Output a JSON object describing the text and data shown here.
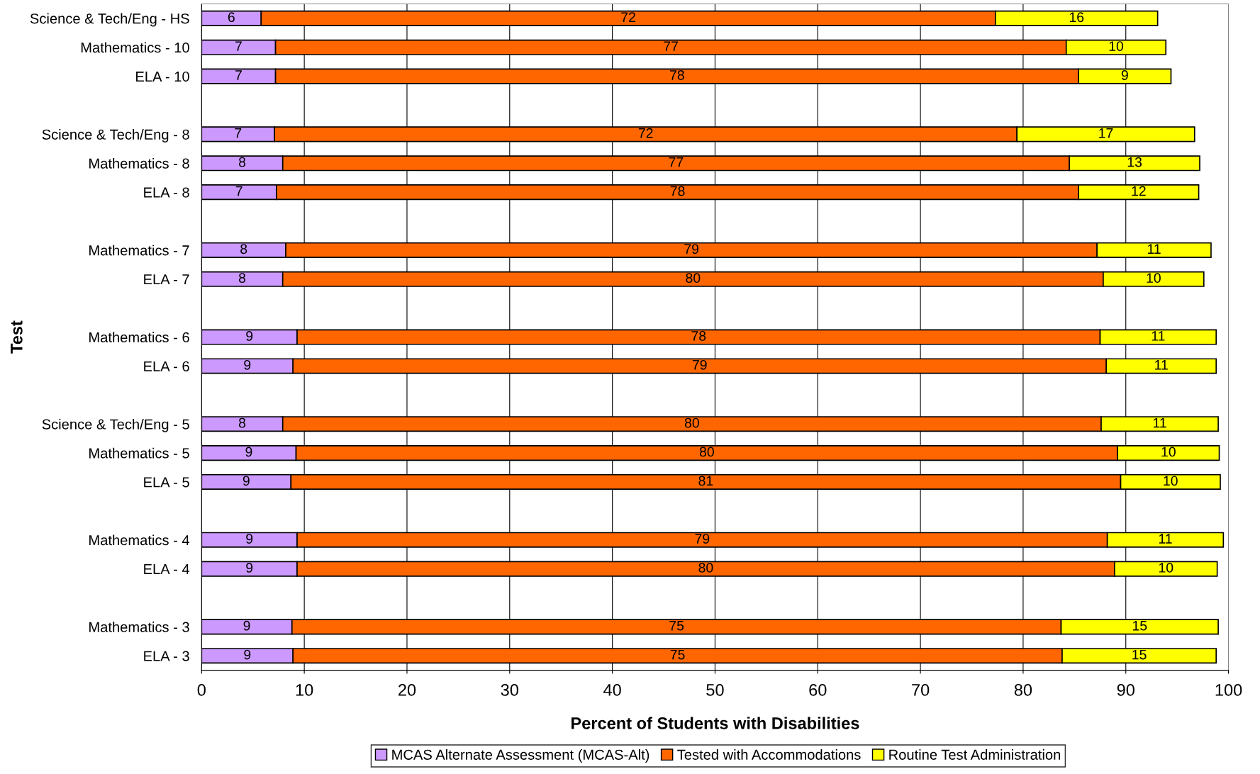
{
  "chart_data": {
    "type": "bar",
    "orientation": "horizontal",
    "stacked": true,
    "xlabel": "Percent of Students with Disabilities",
    "ylabel": "Test",
    "categories": [
      "Science & Tech/Eng - HS",
      "Mathematics - 10",
      "ELA - 10",
      null,
      "Science & Tech/Eng - 8",
      "Mathematics - 8",
      "ELA - 8",
      null,
      "Mathematics - 7",
      "ELA - 7",
      null,
      "Mathematics - 6",
      "ELA - 6",
      null,
      "Science & Tech/Eng - 5",
      "Mathematics - 5",
      "ELA - 5",
      null,
      "Mathematics - 4",
      "ELA - 4",
      null,
      "Mathematics - 3",
      "ELA - 3"
    ],
    "series": [
      {
        "name": "MCAS Alternate Assessment (MCAS-Alt)",
        "color": "#cc99ff",
        "values": [
          5.8,
          7.2,
          7.2,
          null,
          7.1,
          7.9,
          7.3,
          null,
          8.2,
          7.9,
          null,
          9.3,
          8.9,
          null,
          7.9,
          9.2,
          8.7,
          null,
          9.3,
          9.3,
          null,
          8.8,
          8.9
        ],
        "value_labels": [
          "6",
          "7",
          "7",
          null,
          "7",
          "8",
          "7",
          null,
          "8",
          "8",
          null,
          "9",
          "9",
          null,
          "8",
          "9",
          "9",
          null,
          "9",
          "9",
          null,
          "9",
          "9"
        ]
      },
      {
        "name": "Tested with Accommodations",
        "color": "#ff6600",
        "values": [
          71.5,
          77.0,
          78.2,
          null,
          72.3,
          76.6,
          78.1,
          null,
          79.0,
          79.9,
          null,
          78.2,
          79.2,
          null,
          79.7,
          80.0,
          80.8,
          null,
          78.9,
          79.6,
          null,
          74.9,
          74.9
        ],
        "value_labels": [
          "72",
          "77",
          "78",
          null,
          "72",
          "77",
          "78",
          null,
          "79",
          "80",
          null,
          "78",
          "79",
          null,
          "80",
          "80",
          "81",
          null,
          "79",
          "80",
          null,
          "75",
          "75"
        ]
      },
      {
        "name": "Routine Test Administration",
        "color": "#ffff00",
        "values": [
          15.8,
          9.7,
          9.0,
          null,
          17.3,
          12.7,
          11.7,
          null,
          11.1,
          9.8,
          null,
          11.3,
          10.7,
          null,
          11.4,
          9.9,
          9.7,
          null,
          11.3,
          10.0,
          null,
          15.3,
          15.0
        ],
        "value_labels": [
          "16",
          "10",
          "9",
          null,
          "17",
          "13",
          "12",
          null,
          "11",
          "10",
          null,
          "11",
          "11",
          null,
          "11",
          "10",
          "10",
          null,
          "11",
          "10",
          null,
          "15",
          "15"
        ]
      }
    ],
    "xlim": [
      0,
      100
    ],
    "xticks": [
      0,
      10,
      20,
      30,
      40,
      50,
      60,
      70,
      80,
      90,
      100
    ],
    "grid": "x",
    "legend": "bottom"
  }
}
